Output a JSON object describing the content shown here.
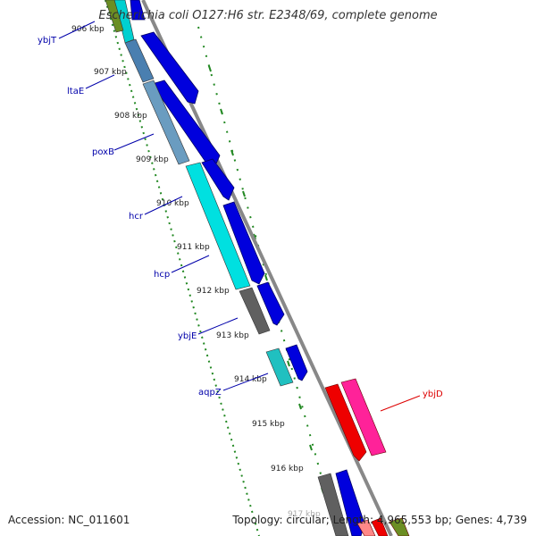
{
  "title": "Escherichia coli O127:H6 str. E2348/69, complete genome",
  "footer": {
    "accession": "Accession: NC_011601",
    "summary": "Topology: circular; Length: 4,965,553 bp; Genes: 4,739"
  },
  "colors": {
    "forward_cds": "#0000dd",
    "backbone": "#888888",
    "ruler": "#228822",
    "label_blue": "#0000aa",
    "label_red": "#dd0000"
  },
  "ruler_labels": [
    "906 kbp",
    "907 kbp",
    "908 kbp",
    "909 kbp",
    "910 kbp",
    "911 kbp",
    "912 kbp",
    "913 kbp",
    "914 kbp",
    "915 kbp",
    "916 kbp",
    "917 kbp"
  ],
  "genes": [
    {
      "name": "ybjT",
      "color": "#0000aa"
    },
    {
      "name": "ltaE",
      "color": "#0000aa"
    },
    {
      "name": "poxB",
      "color": "#0000aa"
    },
    {
      "name": "hcr",
      "color": "#0000aa"
    },
    {
      "name": "hcp",
      "color": "#0000aa"
    },
    {
      "name": "ybjE",
      "color": "#0000aa"
    },
    {
      "name": "aqpZ",
      "color": "#0000aa"
    },
    {
      "name": "ybjD",
      "color": "#dd0000"
    }
  ]
}
